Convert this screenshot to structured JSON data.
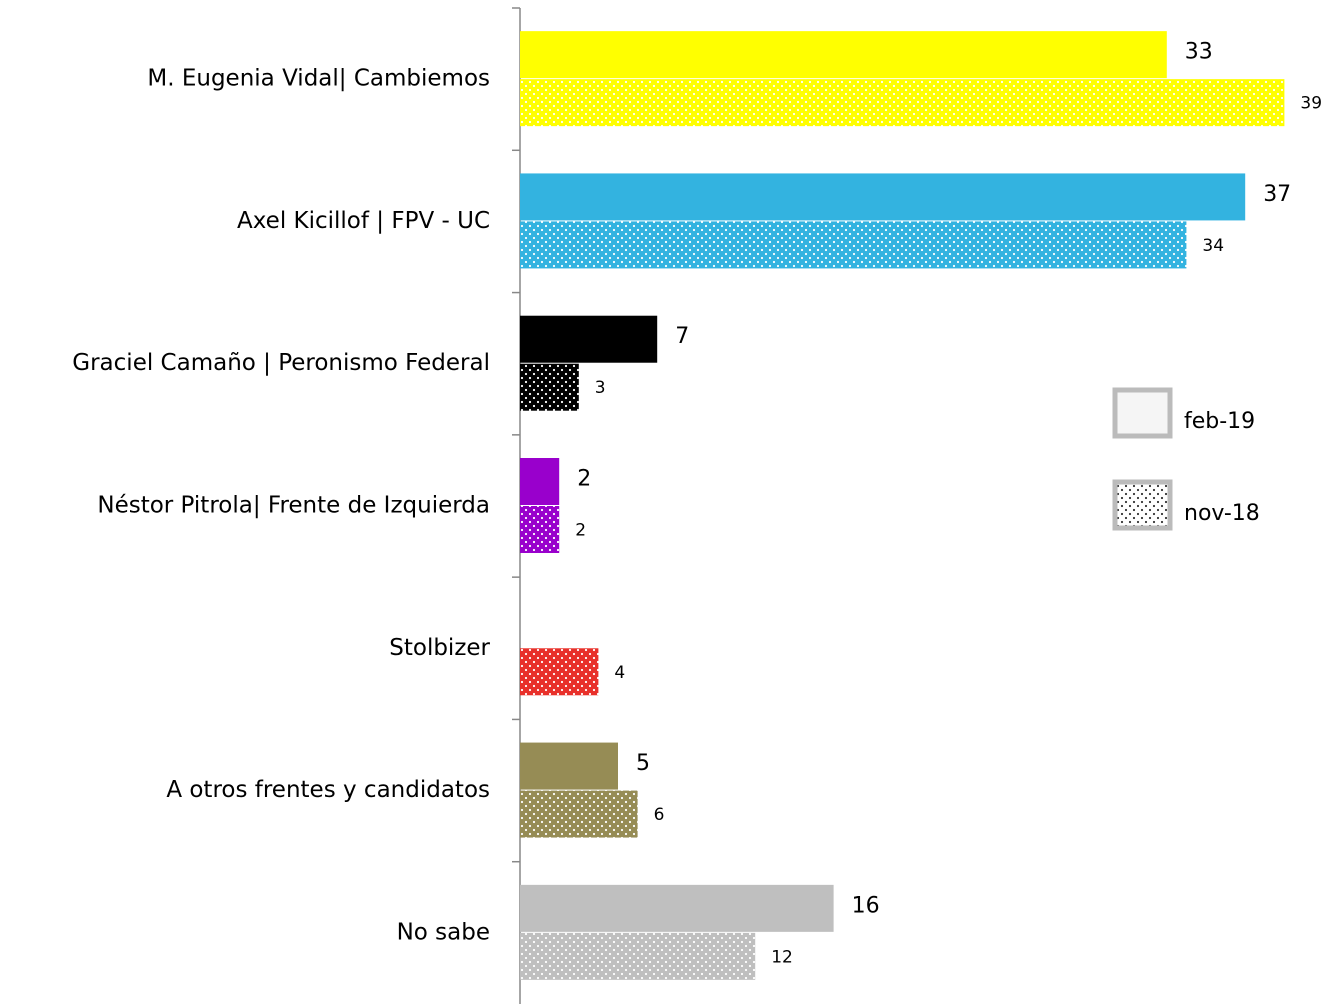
{
  "chart_data": {
    "type": "bar",
    "orientation": "horizontal",
    "categories": [
      "M. Eugenia Vidal| Cambiemos",
      "Axel Kicillof | FPV - UC",
      "Graciel Camaño | Peronismo Federal",
      "Néstor Pitrola| Frente de Izquierda",
      "Stolbizer",
      "A otros frentes y candidatos",
      "No sabe"
    ],
    "colors": [
      "#ffff00",
      "#33b3e0",
      "#000000",
      "#9900cc",
      "#e8302a",
      "#968c55",
      "#bfbfbf"
    ],
    "series": [
      {
        "name": "feb-19",
        "pattern": "solid",
        "values": [
          33,
          37,
          7,
          2,
          null,
          5,
          16
        ]
      },
      {
        "name": "nov-18",
        "pattern": "dots",
        "values": [
          39,
          34,
          3,
          2,
          4,
          6,
          12
        ]
      }
    ],
    "xlim": [
      0,
      40
    ],
    "grid": false
  }
}
